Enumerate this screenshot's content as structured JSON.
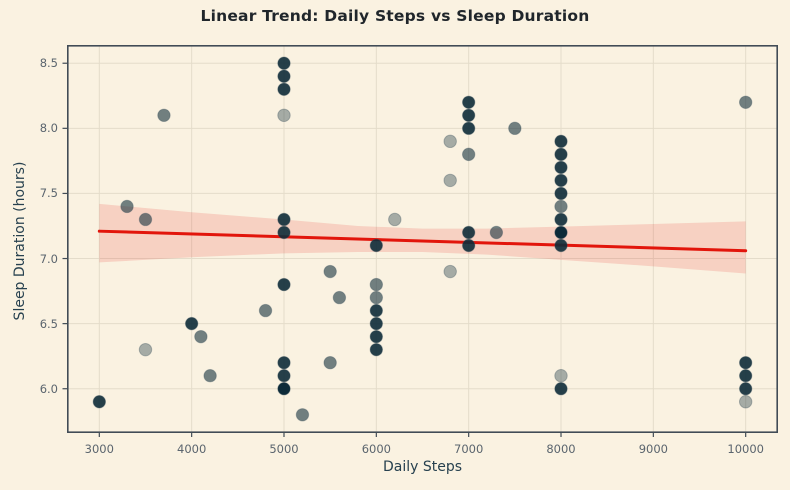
{
  "chart_data": {
    "type": "scatter",
    "title": "Linear Trend: Daily Steps vs Sleep Duration",
    "xlabel": "Daily Steps",
    "ylabel": "Sleep Duration (hours)",
    "xlim": [
      2650,
      10350
    ],
    "ylim": [
      5.66,
      8.64
    ],
    "x_ticks": [
      3000,
      4000,
      5000,
      6000,
      7000,
      8000,
      9000,
      10000
    ],
    "x_tick_labels": [
      "3000",
      "4000",
      "5000",
      "6000",
      "7000",
      "8000",
      "9000",
      "10000"
    ],
    "y_ticks": [
      6.0,
      6.5,
      7.0,
      7.5,
      8.0,
      8.5
    ],
    "y_tick_labels": [
      "6.0",
      "6.5",
      "7.0",
      "7.5",
      "8.0",
      "8.5"
    ],
    "grid": true,
    "legend": "none",
    "points": [
      {
        "x": 3000,
        "y": 5.9,
        "shade": "dark"
      },
      {
        "x": 3300,
        "y": 7.4,
        "shade": "medium"
      },
      {
        "x": 3500,
        "y": 7.3,
        "shade": "medium"
      },
      {
        "x": 3500,
        "y": 6.3,
        "shade": "light"
      },
      {
        "x": 3700,
        "y": 8.1,
        "shade": "medium"
      },
      {
        "x": 4000,
        "y": 6.5,
        "shade": "dark"
      },
      {
        "x": 4100,
        "y": 6.4,
        "shade": "medium"
      },
      {
        "x": 4200,
        "y": 6.1,
        "shade": "medium"
      },
      {
        "x": 4800,
        "y": 6.6,
        "shade": "medium"
      },
      {
        "x": 5000,
        "y": 8.5,
        "shade": "dark"
      },
      {
        "x": 5000,
        "y": 8.4,
        "shade": "dark"
      },
      {
        "x": 5000,
        "y": 8.3,
        "shade": "dark"
      },
      {
        "x": 5000,
        "y": 8.1,
        "shade": "light"
      },
      {
        "x": 5000,
        "y": 7.3,
        "shade": "dark"
      },
      {
        "x": 5000,
        "y": 7.2,
        "shade": "dark"
      },
      {
        "x": 5000,
        "y": 6.8,
        "shade": "dark"
      },
      {
        "x": 5000,
        "y": 6.2,
        "shade": "dark"
      },
      {
        "x": 5000,
        "y": 6.1,
        "shade": "dark"
      },
      {
        "x": 5000,
        "y": 6.0,
        "shade": "darkest"
      },
      {
        "x": 5200,
        "y": 5.8,
        "shade": "medium"
      },
      {
        "x": 5500,
        "y": 6.9,
        "shade": "medium"
      },
      {
        "x": 5600,
        "y": 6.7,
        "shade": "medium"
      },
      {
        "x": 5500,
        "y": 6.2,
        "shade": "medium"
      },
      {
        "x": 6000,
        "y": 7.1,
        "shade": "dark"
      },
      {
        "x": 6000,
        "y": 6.8,
        "shade": "medium"
      },
      {
        "x": 6000,
        "y": 6.7,
        "shade": "medium"
      },
      {
        "x": 6000,
        "y": 6.6,
        "shade": "dark"
      },
      {
        "x": 6000,
        "y": 6.5,
        "shade": "dark"
      },
      {
        "x": 6000,
        "y": 6.4,
        "shade": "dark"
      },
      {
        "x": 6000,
        "y": 6.3,
        "shade": "dark"
      },
      {
        "x": 6200,
        "y": 7.3,
        "shade": "light"
      },
      {
        "x": 6800,
        "y": 7.9,
        "shade": "light"
      },
      {
        "x": 6800,
        "y": 7.6,
        "shade": "light"
      },
      {
        "x": 6800,
        "y": 6.9,
        "shade": "light"
      },
      {
        "x": 7000,
        "y": 8.2,
        "shade": "dark"
      },
      {
        "x": 7000,
        "y": 8.1,
        "shade": "dark"
      },
      {
        "x": 7000,
        "y": 8.0,
        "shade": "dark"
      },
      {
        "x": 7000,
        "y": 7.8,
        "shade": "medium"
      },
      {
        "x": 7000,
        "y": 7.2,
        "shade": "dark"
      },
      {
        "x": 7000,
        "y": 7.1,
        "shade": "dark"
      },
      {
        "x": 7300,
        "y": 7.2,
        "shade": "medium"
      },
      {
        "x": 7500,
        "y": 8.0,
        "shade": "medium"
      },
      {
        "x": 8000,
        "y": 7.9,
        "shade": "dark"
      },
      {
        "x": 8000,
        "y": 7.8,
        "shade": "dark"
      },
      {
        "x": 8000,
        "y": 7.7,
        "shade": "dark"
      },
      {
        "x": 8000,
        "y": 7.6,
        "shade": "dark"
      },
      {
        "x": 8000,
        "y": 7.5,
        "shade": "dark"
      },
      {
        "x": 8000,
        "y": 7.4,
        "shade": "medium"
      },
      {
        "x": 8000,
        "y": 7.3,
        "shade": "dark"
      },
      {
        "x": 8000,
        "y": 7.2,
        "shade": "darkest"
      },
      {
        "x": 8000,
        "y": 7.1,
        "shade": "dark"
      },
      {
        "x": 8000,
        "y": 6.1,
        "shade": "light"
      },
      {
        "x": 8000,
        "y": 6.0,
        "shade": "dark"
      },
      {
        "x": 10000,
        "y": 8.2,
        "shade": "medium"
      },
      {
        "x": 10000,
        "y": 6.2,
        "shade": "dark"
      },
      {
        "x": 10000,
        "y": 6.1,
        "shade": "dark"
      },
      {
        "x": 10000,
        "y": 6.0,
        "shade": "dark"
      },
      {
        "x": 10000,
        "y": 5.9,
        "shade": "light"
      }
    ],
    "trend_line": {
      "x1": 3000,
      "y1": 7.21,
      "x2": 10000,
      "y2": 7.06,
      "color": "#e2150b",
      "width": 3
    },
    "confidence_band": {
      "fill": "rgba(230,50,40,0.17)",
      "upper": [
        [
          3000,
          7.42
        ],
        [
          4000,
          7.355
        ],
        [
          5000,
          7.3
        ],
        [
          5800,
          7.25
        ],
        [
          6500,
          7.23
        ],
        [
          7200,
          7.23
        ],
        [
          8000,
          7.245
        ],
        [
          9000,
          7.265
        ],
        [
          10000,
          7.285
        ]
      ],
      "lower": [
        [
          3000,
          6.97
        ],
        [
          4000,
          7.01
        ],
        [
          5000,
          7.04
        ],
        [
          5800,
          7.05
        ],
        [
          6500,
          7.05
        ],
        [
          7200,
          7.03
        ],
        [
          8000,
          6.99
        ],
        [
          9000,
          6.94
        ],
        [
          10000,
          6.885
        ]
      ]
    },
    "point_style": {
      "color": "#0d2b39",
      "edge": "#39505c",
      "radius": 6.2,
      "shades": {
        "light": 0.36,
        "medium": 0.58,
        "dark": 0.9,
        "darkest": 1.0
      }
    },
    "colors": {
      "background": "#faf2e1",
      "grid": "#e4dcca",
      "spine": "#414c56",
      "tick_label": "#5b656e",
      "axis_label": "#27414f",
      "title": "#20262b"
    }
  }
}
